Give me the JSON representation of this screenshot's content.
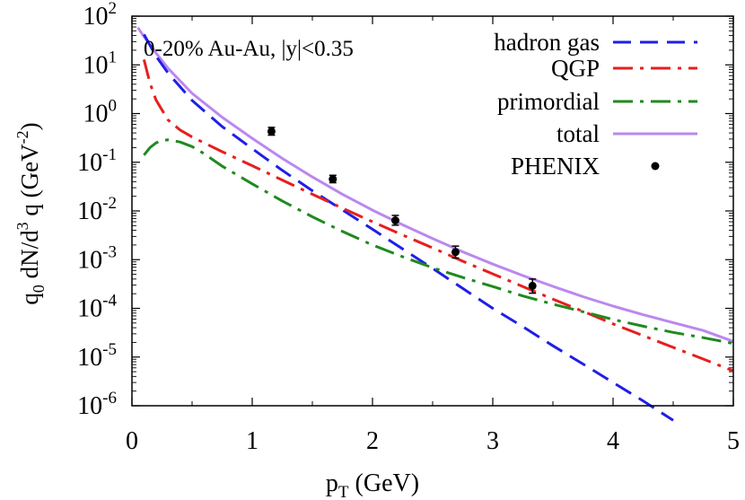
{
  "chart_data": {
    "type": "line",
    "annotation": "0-20% Au-Au, |y|<0.35",
    "xlabel": "p",
    "xlabel_sub": "T",
    "xlabel_unit": "(GeV)",
    "ylabel": {
      "q": "q",
      "q_sub": "0",
      "dn": "dN/d",
      "dn_sup": "3",
      "q2": "q",
      "unit": "(GeV",
      "unit_sup": "-2",
      "close": ")"
    },
    "xlim": [
      0,
      5
    ],
    "ylim": [
      1e-06,
      100
    ],
    "yscale": "log",
    "xticks": [
      "0",
      "1",
      "2",
      "3",
      "4",
      "5"
    ],
    "yticks": [
      {
        "base": "10",
        "exp": "-6",
        "value": 1e-06
      },
      {
        "base": "10",
        "exp": "-5",
        "value": 1e-05
      },
      {
        "base": "10",
        "exp": "-4",
        "value": 0.0001
      },
      {
        "base": "10",
        "exp": "-3",
        "value": 0.001
      },
      {
        "base": "10",
        "exp": "-2",
        "value": 0.01
      },
      {
        "base": "10",
        "exp": "-1",
        "value": 0.1
      },
      {
        "base": "10",
        "exp": "0",
        "value": 1
      },
      {
        "base": "10",
        "exp": "1",
        "value": 10
      },
      {
        "base": "10",
        "exp": "2",
        "value": 100
      }
    ],
    "legend_position": "top-right",
    "series": [
      {
        "name": "hadron gas",
        "color": "#1f1fe6",
        "dash": "dashed",
        "x": [
          0.1,
          0.2,
          0.3,
          0.5,
          0.75,
          1.0,
          1.25,
          1.5,
          1.75,
          2.0,
          2.25,
          2.5,
          2.75,
          3.0,
          3.25,
          3.5,
          3.75,
          4.0,
          4.25,
          4.5
        ],
        "y": [
          42.0,
          15.1,
          6.8,
          1.86,
          0.54,
          0.19,
          0.068,
          0.026,
          0.0105,
          0.0042,
          0.00166,
          0.00066,
          0.000257,
          0.0001,
          4.2e-05,
          1.7e-05,
          7.2e-06,
          3e-06,
          1.26e-06,
          5e-07
        ]
      },
      {
        "name": "QGP",
        "color": "#e61f1f",
        "dash": "dash-dot",
        "x": [
          0.1,
          0.15,
          0.2,
          0.3,
          0.4,
          0.5,
          0.75,
          1.0,
          1.25,
          1.5,
          1.75,
          2.0,
          2.25,
          2.5,
          2.75,
          3.0,
          3.25,
          3.5,
          3.75,
          4.0,
          4.25,
          4.5,
          4.75,
          5.0
        ],
        "y": [
          12.8,
          4.2,
          1.9,
          0.74,
          0.46,
          0.33,
          0.165,
          0.085,
          0.043,
          0.022,
          0.0114,
          0.006,
          0.0032,
          0.00175,
          0.00093,
          0.00051,
          0.00028,
          0.000155,
          8.7e-05,
          4.8e-05,
          2.75e-05,
          1.58e-05,
          9.1e-06,
          5.2e-06
        ]
      },
      {
        "name": "primordial",
        "color": "#1f8a1f",
        "dash": "dash-dot",
        "x": [
          0.1,
          0.15,
          0.2,
          0.25,
          0.3,
          0.4,
          0.5,
          0.6,
          0.75,
          1.0,
          1.25,
          1.5,
          1.75,
          2.0,
          2.25,
          2.5,
          2.75,
          3.0,
          3.25,
          3.5,
          3.75,
          4.0,
          4.25,
          4.5,
          4.75,
          5.0
        ],
        "y": [
          0.14,
          0.2,
          0.25,
          0.28,
          0.29,
          0.26,
          0.21,
          0.15,
          0.083,
          0.036,
          0.016,
          0.0076,
          0.0038,
          0.002,
          0.00115,
          0.00068,
          0.00043,
          0.00028,
          0.00018,
          0.000122,
          8.5e-05,
          5.9e-05,
          4.3e-05,
          3.2e-05,
          2.5e-05,
          1.9e-05
        ]
      },
      {
        "name": "total",
        "color": "#bb88ee",
        "dash": "solid",
        "x": [
          0.05,
          0.1,
          0.2,
          0.3,
          0.5,
          0.75,
          1.0,
          1.25,
          1.5,
          1.75,
          2.0,
          2.25,
          2.5,
          2.75,
          3.0,
          3.25,
          3.5,
          3.75,
          4.0,
          4.25,
          4.5,
          4.75,
          5.0
        ],
        "y": [
          58.0,
          38.0,
          17.5,
          8.5,
          2.6,
          0.84,
          0.31,
          0.12,
          0.05,
          0.022,
          0.0104,
          0.0052,
          0.0027,
          0.00145,
          0.00081,
          0.00047,
          0.000283,
          0.000174,
          0.000111,
          7.4e-05,
          5.1e-05,
          3.5e-05,
          2.1e-05
        ]
      }
    ],
    "points": {
      "name": "PHENIX",
      "color": "#000000",
      "x": [
        1.16,
        1.67,
        2.19,
        2.69,
        3.33
      ],
      "y": [
        0.43,
        0.045,
        0.0064,
        0.00143,
        0.00029
      ],
      "err_lo": [
        0.36,
        0.038,
        0.0051,
        0.00108,
        0.000205
      ],
      "err_hi": [
        0.52,
        0.054,
        0.0081,
        0.0019,
        0.0004
      ]
    }
  }
}
